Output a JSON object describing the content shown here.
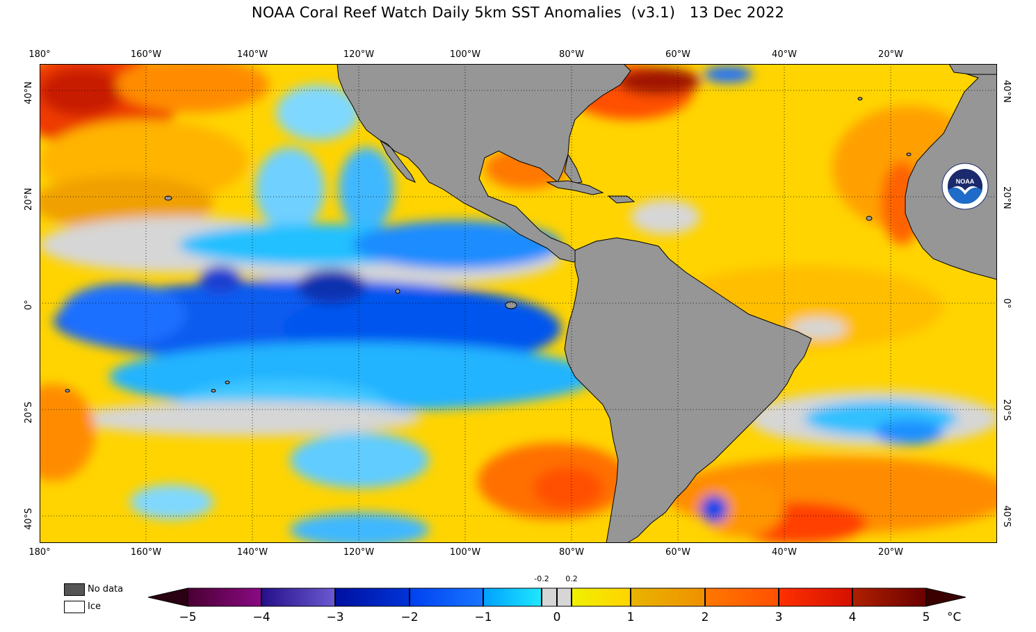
{
  "title": "NOAA Coral Reef Watch Daily 5km SST Anomalies  (v3.1)   13 Dec 2022",
  "map": {
    "lon_labels": [
      "180°",
      "160°W",
      "140°W",
      "120°W",
      "100°W",
      "80°W",
      "60°W",
      "40°W",
      "20°W"
    ],
    "lat_labels_left": [
      "40°N",
      "20°N",
      "0°",
      "20°S",
      "40°S"
    ],
    "lat_labels_right": [
      "40°N",
      "20°N",
      "0°",
      "20°S",
      "40°S"
    ],
    "land_color": "#969696",
    "grid": "dotted"
  },
  "legend": {
    "no_data_label": "No data",
    "no_data_color": "#555555",
    "ice_label": "Ice",
    "ice_color": "#ffffff"
  },
  "colorbar": {
    "ticks": [
      "−5",
      "−4",
      "−3",
      "−2",
      "−1",
      "0",
      "1",
      "2",
      "3",
      "4",
      "5"
    ],
    "small_ticks": [
      "-0.2",
      "0.2"
    ],
    "unit": "°C",
    "min": -5,
    "max": 5,
    "colors": {
      "m5_4": [
        "#4a0033",
        "#6a0a60",
        "#8a0a84"
      ],
      "m4_3": [
        "#26108a",
        "#3a2ab0",
        "#6a5ad0"
      ],
      "m3_2": [
        "#0010a0",
        "#0028c8",
        "#0034d8"
      ],
      "m2_1": [
        "#0040f0",
        "#0058ff",
        "#1876ff"
      ],
      "m1_0": [
        "#00a0ff",
        "#00ccff",
        "#20e8ff"
      ],
      "near0": "#d6d6d6",
      "p0_1": [
        "#f0f000",
        "#ffe800",
        "#ffd400"
      ],
      "p1_2": [
        "#e8b400",
        "#e8a000",
        "#f09000"
      ],
      "p2_3": [
        "#ff7800",
        "#ff6400",
        "#ff5000"
      ],
      "p3_4": [
        "#ff3000",
        "#ee2000",
        "#d41000"
      ],
      "p4_5": [
        "#b02000",
        "#901000",
        "#6a0000"
      ]
    }
  },
  "logo_text": "NOAA"
}
